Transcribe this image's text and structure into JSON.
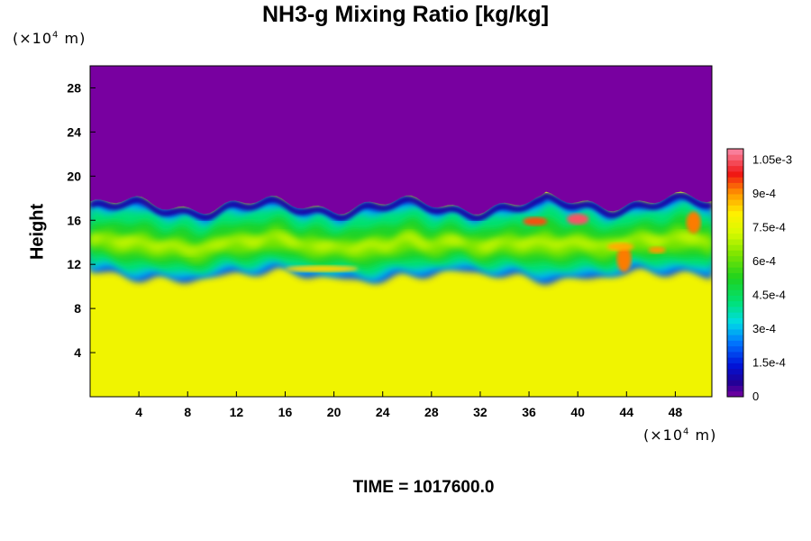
{
  "chart_data": {
    "type": "heatmap",
    "title": "NH3-g Mixing Ratio [kg/kg]",
    "ylabel": "Height",
    "xlabel": "",
    "x_unit": "(×10⁴ m)",
    "y_unit": "(×10⁴ m)",
    "footer": "TIME = 1017600.0",
    "xlim": [
      0,
      51
    ],
    "ylim": [
      0,
      30
    ],
    "xticks": [
      4,
      8,
      12,
      16,
      20,
      24,
      28,
      32,
      36,
      40,
      44,
      48
    ],
    "yticks": [
      4,
      8,
      12,
      16,
      20,
      24,
      28
    ],
    "colorbar": {
      "range": [
        0,
        0.0011
      ],
      "ticks": [
        {
          "value": 0,
          "label": "0"
        },
        {
          "value": 0.00015,
          "label": "1.5e-4"
        },
        {
          "value": 0.0003,
          "label": "3e-4"
        },
        {
          "value": 0.00045,
          "label": "4.5e-4"
        },
        {
          "value": 0.0006,
          "label": "6e-4"
        },
        {
          "value": 0.00075,
          "label": "7.5e-4"
        },
        {
          "value": 0.0009,
          "label": "9e-4"
        },
        {
          "value": 0.00105,
          "label": "1.05e-3"
        }
      ]
    },
    "field": {
      "lower_layer_value": 0.00078,
      "upper_layer_value": 0,
      "mixing_zone_height": [
        11,
        18
      ]
    }
  }
}
